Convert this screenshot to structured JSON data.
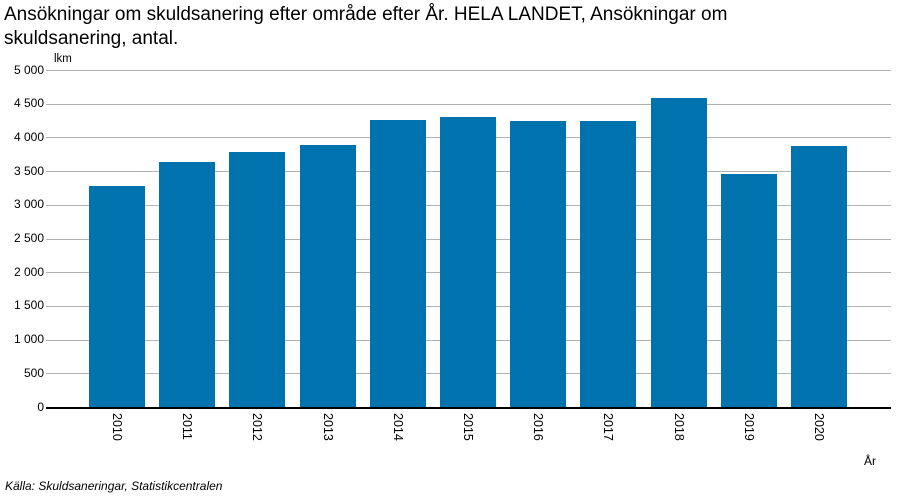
{
  "title_lines": [
    "Ansökningar om skuldsanering efter område efter År. HELA LANDET, Ansökningar om",
    "skuldsanering, antal."
  ],
  "source": "Källa: Skuldsaneringar, Statistikcentralen",
  "chart_data": {
    "type": "bar",
    "title": "Ansökningar om skuldsanering efter område efter År. HELA LANDET, Ansökningar om skuldsanering, antal.",
    "unit_label": "lkm",
    "xlabel": "År",
    "ylabel": "",
    "categories": [
      "2010",
      "2011",
      "2012",
      "2013",
      "2014",
      "2015",
      "2016",
      "2017",
      "2018",
      "2019",
      "2020"
    ],
    "values": [
      3280,
      3630,
      3790,
      3880,
      4265,
      4300,
      4240,
      4240,
      4580,
      3450,
      3870
    ],
    "ylim": [
      0,
      5000
    ],
    "ytick_step": 500,
    "ytick_labels": [
      "0",
      "500",
      "1 000",
      "1 500",
      "2 000",
      "2 500",
      "3 000",
      "3 500",
      "4 000",
      "4 500",
      "5 000"
    ],
    "grid": true,
    "legend": "none",
    "bar_color": "#0073ae",
    "gridline_color": "#b3b3b3",
    "axis_color": "#000000"
  }
}
